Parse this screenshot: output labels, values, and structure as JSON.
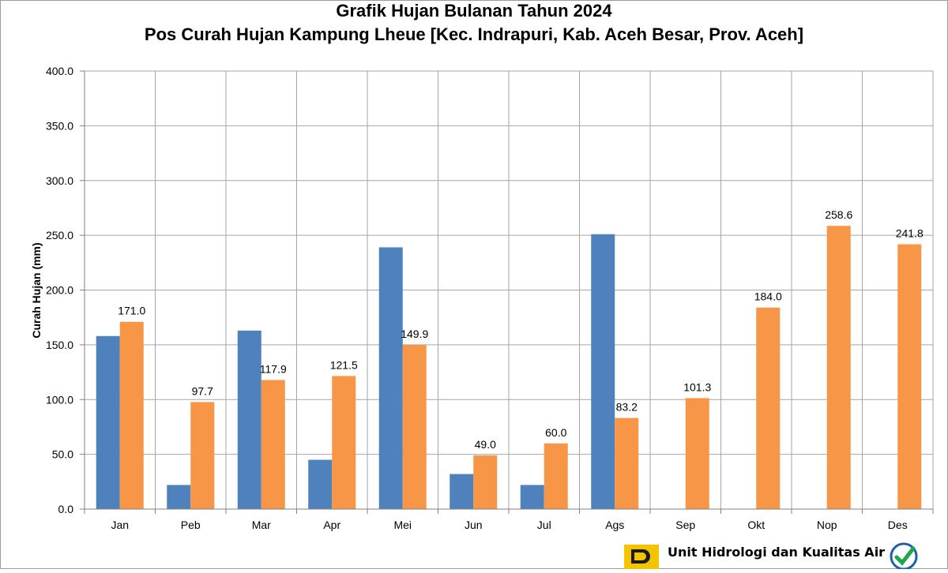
{
  "chart_data": {
    "type": "bar",
    "title": "Grafik Hujan Bulanan Tahun 2024",
    "subtitle": "Pos Curah Hujan Kampung Lheue [Kec. Indrapuri, Kab. Aceh Besar, Prov. Aceh]",
    "xlabel": "",
    "ylabel": "Curah Hujan (mm)",
    "ylim": [
      0,
      400
    ],
    "yticks": [
      "0.0",
      "50.0",
      "100.0",
      "150.0",
      "200.0",
      "250.0",
      "300.0",
      "350.0",
      "400.0"
    ],
    "grid": true,
    "legend": "none",
    "categories": [
      "Jan",
      "Peb",
      "Mar",
      "Apr",
      "Mei",
      "Jun",
      "Jul",
      "Ags",
      "Sep",
      "Okt",
      "Nop",
      "Des"
    ],
    "series": [
      {
        "color": "#4f81bd",
        "values": [
          158,
          22,
          163,
          45,
          239,
          32,
          22,
          251,
          null,
          null,
          null,
          null
        ],
        "labels": [
          "",
          "",
          "",
          "",
          "",
          "",
          "",
          "",
          "",
          "",
          "",
          ""
        ]
      },
      {
        "color": "#f79646",
        "values": [
          171.0,
          97.7,
          117.9,
          121.5,
          149.9,
          49.0,
          60.0,
          83.2,
          101.3,
          184.0,
          258.6,
          241.8
        ],
        "labels": [
          "171.0",
          "97.7",
          "117.9",
          "121.5",
          "149.9",
          "49.0",
          "60.0",
          "83.2",
          "101.3",
          "184.0",
          "258.6",
          "241.8"
        ]
      }
    ]
  },
  "footer": {
    "org_line1": "Unit Hidrologi dan Kualitas Air",
    "logo_icon": "pu-logo-icon",
    "badge_icon": "iso-check-badge-icon",
    "logo_color": "#f5c400",
    "badge_color": "#1aa84a"
  }
}
